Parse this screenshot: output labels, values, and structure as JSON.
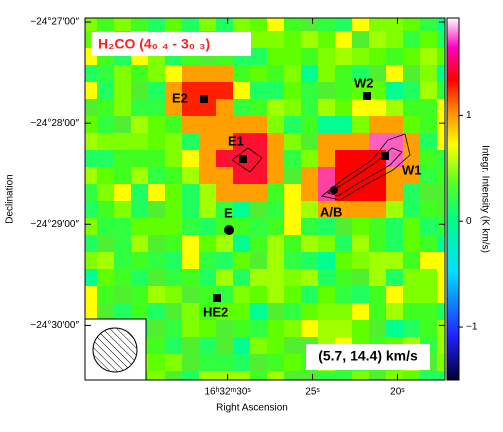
{
  "chart_data": {
    "type": "image",
    "title": "H₂CO (4₀ ₄ - 3₀ ₃)",
    "xlabel": "Right Ascension",
    "ylabel": "Declination",
    "colorbar_label": "Integr. Intensity (K km/s)",
    "annotation": "(5.7, 14.4) km/s",
    "sources": [
      "E2",
      "W2",
      "E1",
      "W1",
      "A/B",
      "E",
      "HE2"
    ],
    "xlim": [
      38.4,
      17.2
    ],
    "xticks": [
      {
        "value": 30,
        "label": "16ʰ32ᵐ30ˢ"
      },
      {
        "value": 25,
        "label": "25ˢ"
      },
      {
        "value": 20,
        "label": "20ˢ"
      }
    ],
    "ylim": [
      30.54,
      26.96
    ],
    "yticks": [
      {
        "value": 27,
        "label": "−24°27′00″"
      },
      {
        "value": 28,
        "label": "−24°28′00″"
      },
      {
        "value": 29,
        "label": "−24°29′00″"
      },
      {
        "value": 30,
        "label": "−24°30′00″"
      }
    ],
    "clim": [
      -1.5,
      1.92
    ],
    "cticks": [
      {
        "value": -1,
        "label": "−1"
      },
      0,
      1
    ]
  }
}
